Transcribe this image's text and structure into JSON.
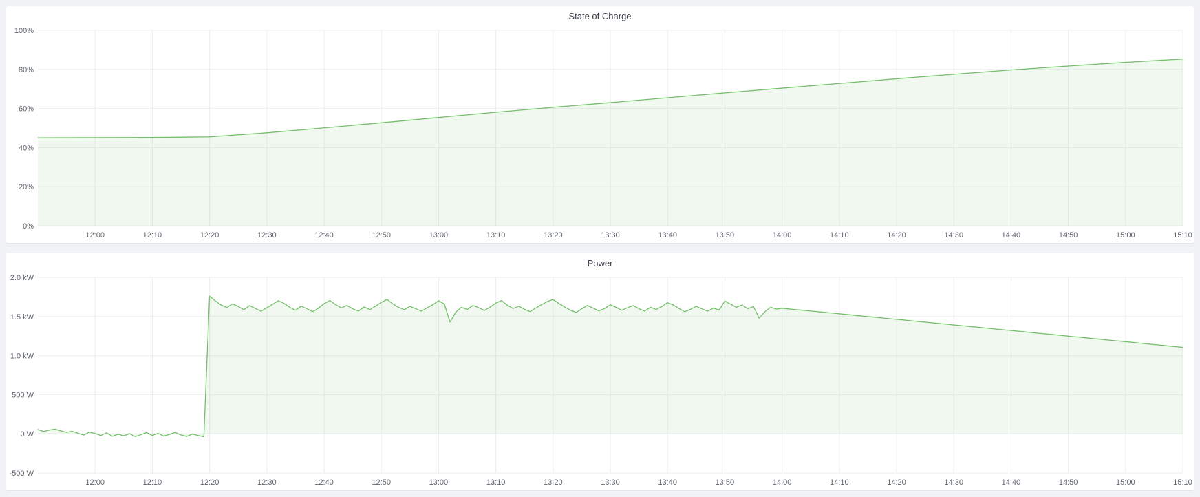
{
  "theme": {
    "page_bg": "#f0f2f6",
    "panel_bg": "#ffffff",
    "panel_border": "#e2e6ec",
    "title_color": "#3b4149",
    "tick_color": "#5f646b",
    "grid_color": "#ebedf0",
    "series_color": "#73bf69",
    "series_fill": "rgba(115,191,105,0.10)"
  },
  "chart_data": [
    {
      "type": "area",
      "title": "State of Charge",
      "unit": "percent",
      "ylim": [
        0,
        100
      ],
      "y_ticks": [
        {
          "value": 0,
          "label": "0%"
        },
        {
          "value": 20,
          "label": "20%"
        },
        {
          "value": 40,
          "label": "40%"
        },
        {
          "value": 60,
          "label": "60%"
        },
        {
          "value": 80,
          "label": "80%"
        },
        {
          "value": 100,
          "label": "100%"
        }
      ],
      "x_ticks": [
        "12:00",
        "12:10",
        "12:20",
        "12:30",
        "12:40",
        "12:50",
        "13:00",
        "13:10",
        "13:20",
        "13:30",
        "13:40",
        "13:50",
        "14:00",
        "14:10",
        "14:20",
        "14:30",
        "14:40",
        "14:50",
        "15:00",
        "15:10"
      ],
      "start_time": "11:50",
      "end_time": "15:10",
      "step_minutes": 10,
      "fill_baseline": 0,
      "grid": true,
      "legend": "none",
      "values": [
        45.0,
        45.1,
        45.2,
        45.5,
        47.6,
        50.1,
        52.7,
        55.4,
        58.1,
        60.6,
        63.0,
        65.5,
        68.0,
        70.4,
        72.8,
        75.2,
        77.5,
        79.7,
        81.7,
        83.6,
        85.3
      ]
    },
    {
      "type": "area",
      "title": "Power",
      "unit": "watts",
      "ylim": [
        -500,
        2000
      ],
      "y_ticks": [
        {
          "value": -500,
          "label": "-500 W"
        },
        {
          "value": 0,
          "label": "0 W"
        },
        {
          "value": 500,
          "label": "500 W"
        },
        {
          "value": 1000,
          "label": "1.0 kW"
        },
        {
          "value": 1500,
          "label": "1.5 kW"
        },
        {
          "value": 2000,
          "label": "2.0 kW"
        }
      ],
      "x_ticks": [
        "12:00",
        "12:10",
        "12:20",
        "12:30",
        "12:40",
        "12:50",
        "13:00",
        "13:10",
        "13:20",
        "13:30",
        "13:40",
        "13:50",
        "14:00",
        "14:10",
        "14:20",
        "14:30",
        "14:40",
        "14:50",
        "15:00",
        "15:10"
      ],
      "start_time": "11:50",
      "end_time": "15:10",
      "step_minutes": 1,
      "fill_baseline": 0,
      "grid": true,
      "legend": "none",
      "values": [
        55,
        30,
        48,
        60,
        38,
        18,
        32,
        8,
        -18,
        22,
        4,
        -22,
        12,
        -32,
        -6,
        -26,
        2,
        -36,
        -12,
        16,
        -22,
        6,
        -30,
        -8,
        18,
        -16,
        -34,
        -4,
        -22,
        -38,
        1760,
        1700,
        1648,
        1615,
        1662,
        1628,
        1588,
        1640,
        1602,
        1568,
        1612,
        1655,
        1702,
        1668,
        1618,
        1580,
        1632,
        1600,
        1562,
        1605,
        1665,
        1705,
        1652,
        1610,
        1642,
        1598,
        1570,
        1622,
        1588,
        1632,
        1682,
        1718,
        1662,
        1618,
        1588,
        1630,
        1600,
        1568,
        1612,
        1650,
        1702,
        1660,
        1430,
        1555,
        1618,
        1590,
        1642,
        1612,
        1578,
        1620,
        1672,
        1704,
        1645,
        1602,
        1632,
        1592,
        1562,
        1610,
        1652,
        1692,
        1718,
        1668,
        1622,
        1582,
        1552,
        1598,
        1642,
        1608,
        1572,
        1602,
        1650,
        1618,
        1580,
        1612,
        1640,
        1600,
        1570,
        1618,
        1590,
        1628,
        1678,
        1648,
        1602,
        1562,
        1592,
        1630,
        1598,
        1568,
        1608,
        1582,
        1698,
        1658,
        1618,
        1648,
        1600,
        1628,
        1480,
        1562,
        1618,
        1595,
        1605,
        1598,
        1591,
        1584,
        1577,
        1570,
        1563,
        1556,
        1549,
        1542,
        1535,
        1528,
        1521,
        1513,
        1506,
        1499,
        1492,
        1485,
        1478,
        1471,
        1464,
        1457,
        1450,
        1442,
        1435,
        1428,
        1421,
        1414,
        1407,
        1400,
        1392,
        1385,
        1378,
        1371,
        1364,
        1357,
        1350,
        1342,
        1335,
        1328,
        1321,
        1314,
        1307,
        1299,
        1292,
        1285,
        1278,
        1271,
        1264,
        1257,
        1249,
        1242,
        1235,
        1228,
        1221,
        1214,
        1206,
        1199,
        1192,
        1185,
        1178,
        1171,
        1163,
        1156,
        1149,
        1142,
        1135,
        1128,
        1120,
        1113,
        1106
      ]
    }
  ]
}
